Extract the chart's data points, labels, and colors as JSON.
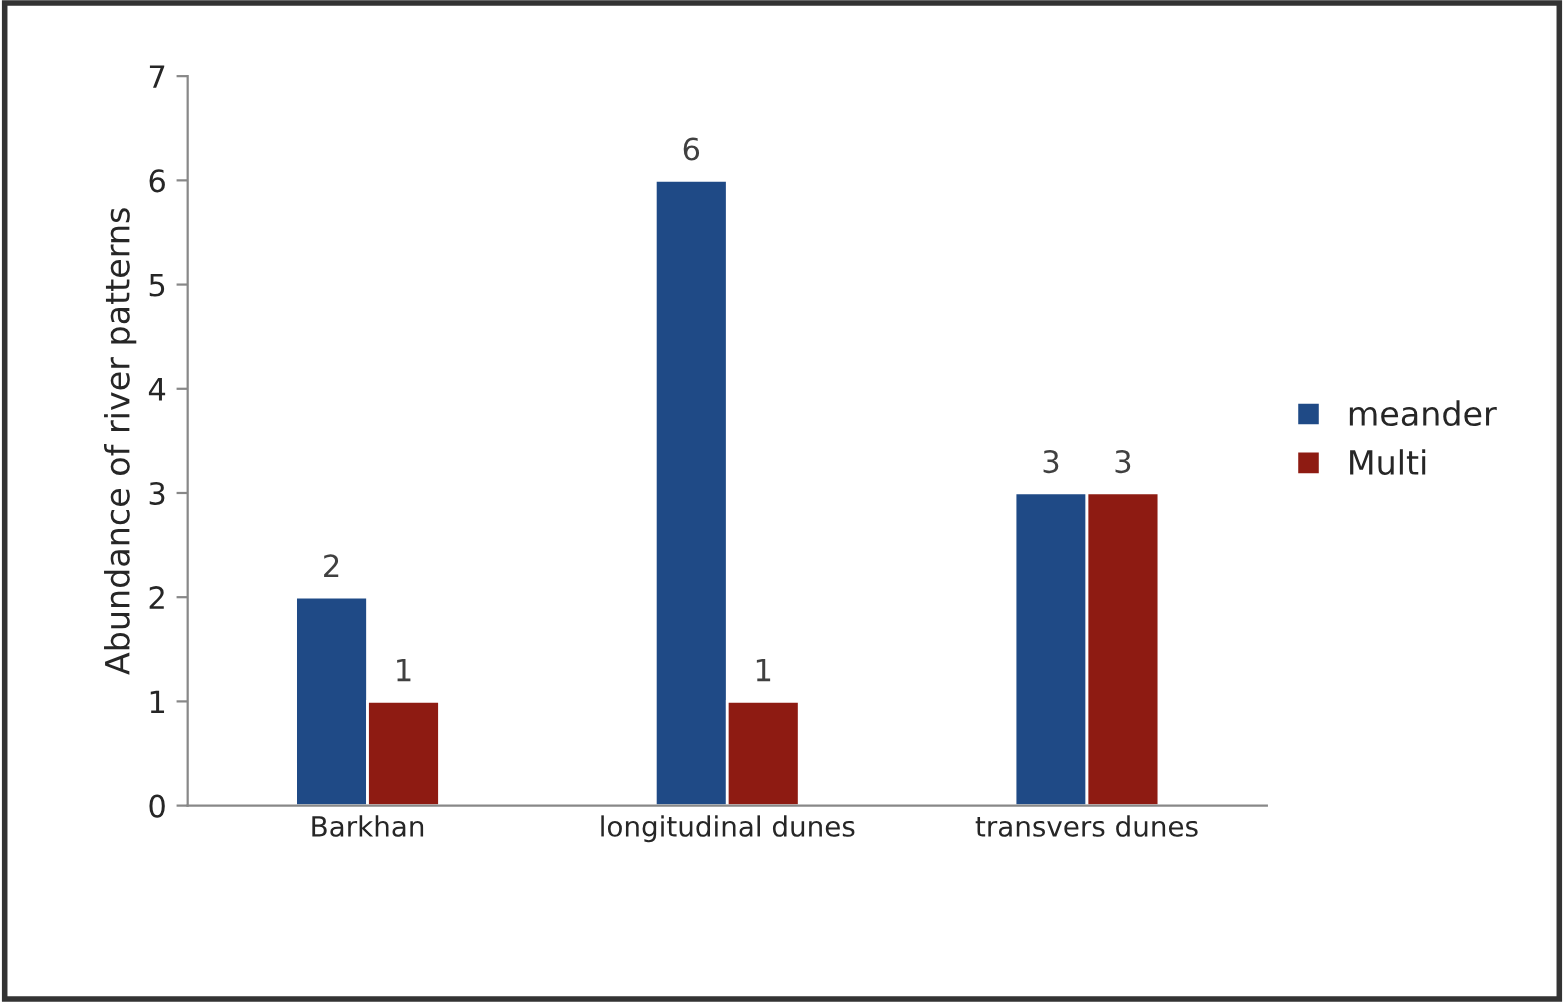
{
  "chart_data": {
    "type": "bar",
    "ylabel": "Abundance of river patterns",
    "categories": [
      "Barkhan",
      "longitudinal dunes",
      "transvers dunes"
    ],
    "series": [
      {
        "name": "meander",
        "color": "#1f4a86",
        "values": [
          2,
          6,
          3
        ]
      },
      {
        "name": "Multi",
        "color": "#8e1b12",
        "values": [
          1,
          1,
          3
        ]
      }
    ],
    "ylim": [
      0,
      7
    ],
    "yticks": [
      0,
      1,
      2,
      3,
      4,
      5,
      6,
      7
    ],
    "grid": false,
    "legend": "right",
    "data_labels": true
  }
}
